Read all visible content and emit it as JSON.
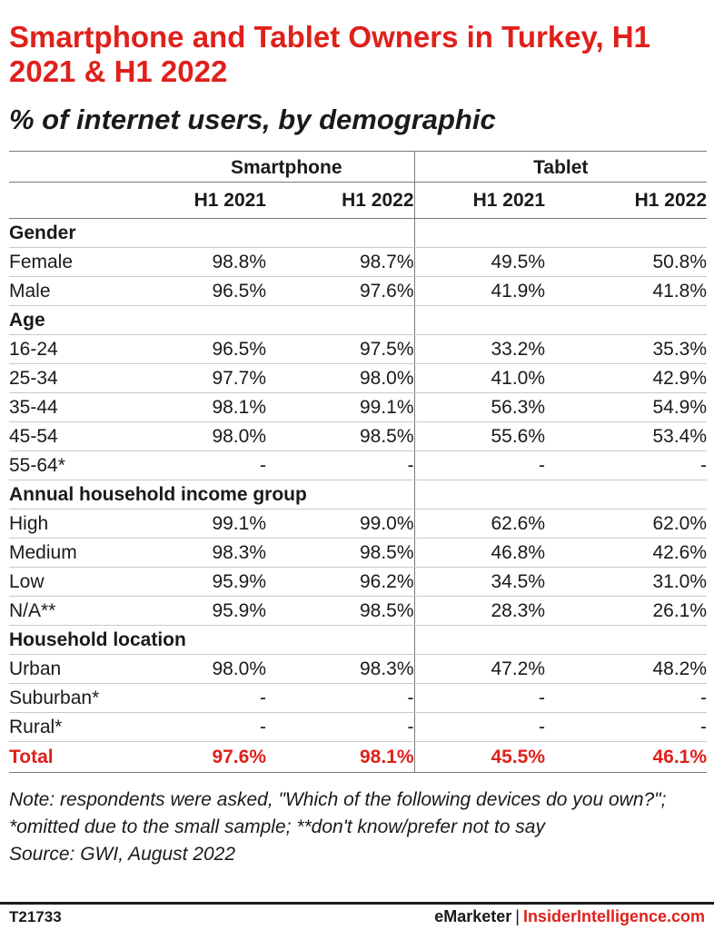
{
  "chart_data": {
    "type": "table",
    "title": "Smartphone and Tablet Owners in Turkey, H1 2021 & H1 2022",
    "subtitle": "% of internet users, by demographic",
    "groups": [
      "Smartphone",
      "Tablet"
    ],
    "columns": [
      "H1 2021",
      "H1 2022",
      "H1 2021",
      "H1 2022"
    ],
    "rows": [
      {
        "kind": "section",
        "label": "Gender",
        "values": [
          "",
          "",
          "",
          ""
        ]
      },
      {
        "kind": "row",
        "label": "Female",
        "values": [
          "98.8%",
          "98.7%",
          "49.5%",
          "50.8%"
        ]
      },
      {
        "kind": "row",
        "label": "Male",
        "values": [
          "96.5%",
          "97.6%",
          "41.9%",
          "41.8%"
        ]
      },
      {
        "kind": "section",
        "label": "Age",
        "values": [
          "",
          "",
          "",
          ""
        ]
      },
      {
        "kind": "row",
        "label": "16-24",
        "values": [
          "96.5%",
          "97.5%",
          "33.2%",
          "35.3%"
        ]
      },
      {
        "kind": "row",
        "label": "25-34",
        "values": [
          "97.7%",
          "98.0%",
          "41.0%",
          "42.9%"
        ]
      },
      {
        "kind": "row",
        "label": "35-44",
        "values": [
          "98.1%",
          "99.1%",
          "56.3%",
          "54.9%"
        ]
      },
      {
        "kind": "row",
        "label": "45-54",
        "values": [
          "98.0%",
          "98.5%",
          "55.6%",
          "53.4%"
        ]
      },
      {
        "kind": "row",
        "label": "55-64*",
        "values": [
          "-",
          "-",
          "-",
          "-"
        ]
      },
      {
        "kind": "section",
        "label": "Annual household income group",
        "values": [
          "",
          "",
          "",
          ""
        ]
      },
      {
        "kind": "row",
        "label": "High",
        "values": [
          "99.1%",
          "99.0%",
          "62.6%",
          "62.0%"
        ]
      },
      {
        "kind": "row",
        "label": "Medium",
        "values": [
          "98.3%",
          "98.5%",
          "46.8%",
          "42.6%"
        ]
      },
      {
        "kind": "row",
        "label": "Low",
        "values": [
          "95.9%",
          "96.2%",
          "34.5%",
          "31.0%"
        ]
      },
      {
        "kind": "row",
        "label": "N/A**",
        "values": [
          "95.9%",
          "98.5%",
          "28.3%",
          "26.1%"
        ]
      },
      {
        "kind": "section",
        "label": "Household location",
        "values": [
          "",
          "",
          "",
          ""
        ]
      },
      {
        "kind": "row",
        "label": "Urban",
        "values": [
          "98.0%",
          "98.3%",
          "47.2%",
          "48.2%"
        ]
      },
      {
        "kind": "row",
        "label": "Suburban*",
        "values": [
          "-",
          "-",
          "-",
          "-"
        ]
      },
      {
        "kind": "row",
        "label": "Rural*",
        "values": [
          "-",
          "-",
          "-",
          "-"
        ]
      },
      {
        "kind": "total",
        "label": "Total",
        "values": [
          "97.6%",
          "98.1%",
          "45.5%",
          "46.1%"
        ]
      }
    ]
  },
  "footer": {
    "note": "Note: respondents were asked, \"Which of the following devices do you own?\"; *omitted due to the small sample; **don't know/prefer not to say",
    "source": "Source: GWI, August 2022",
    "code": "T21733",
    "brand_left": "eMarketer",
    "brand_separator": "|",
    "brand_right": "InsiderIntelligence.com"
  },
  "colors": {
    "accent": "#e0201b",
    "text": "#1a1a1a",
    "rule": "#7a7a7a"
  }
}
